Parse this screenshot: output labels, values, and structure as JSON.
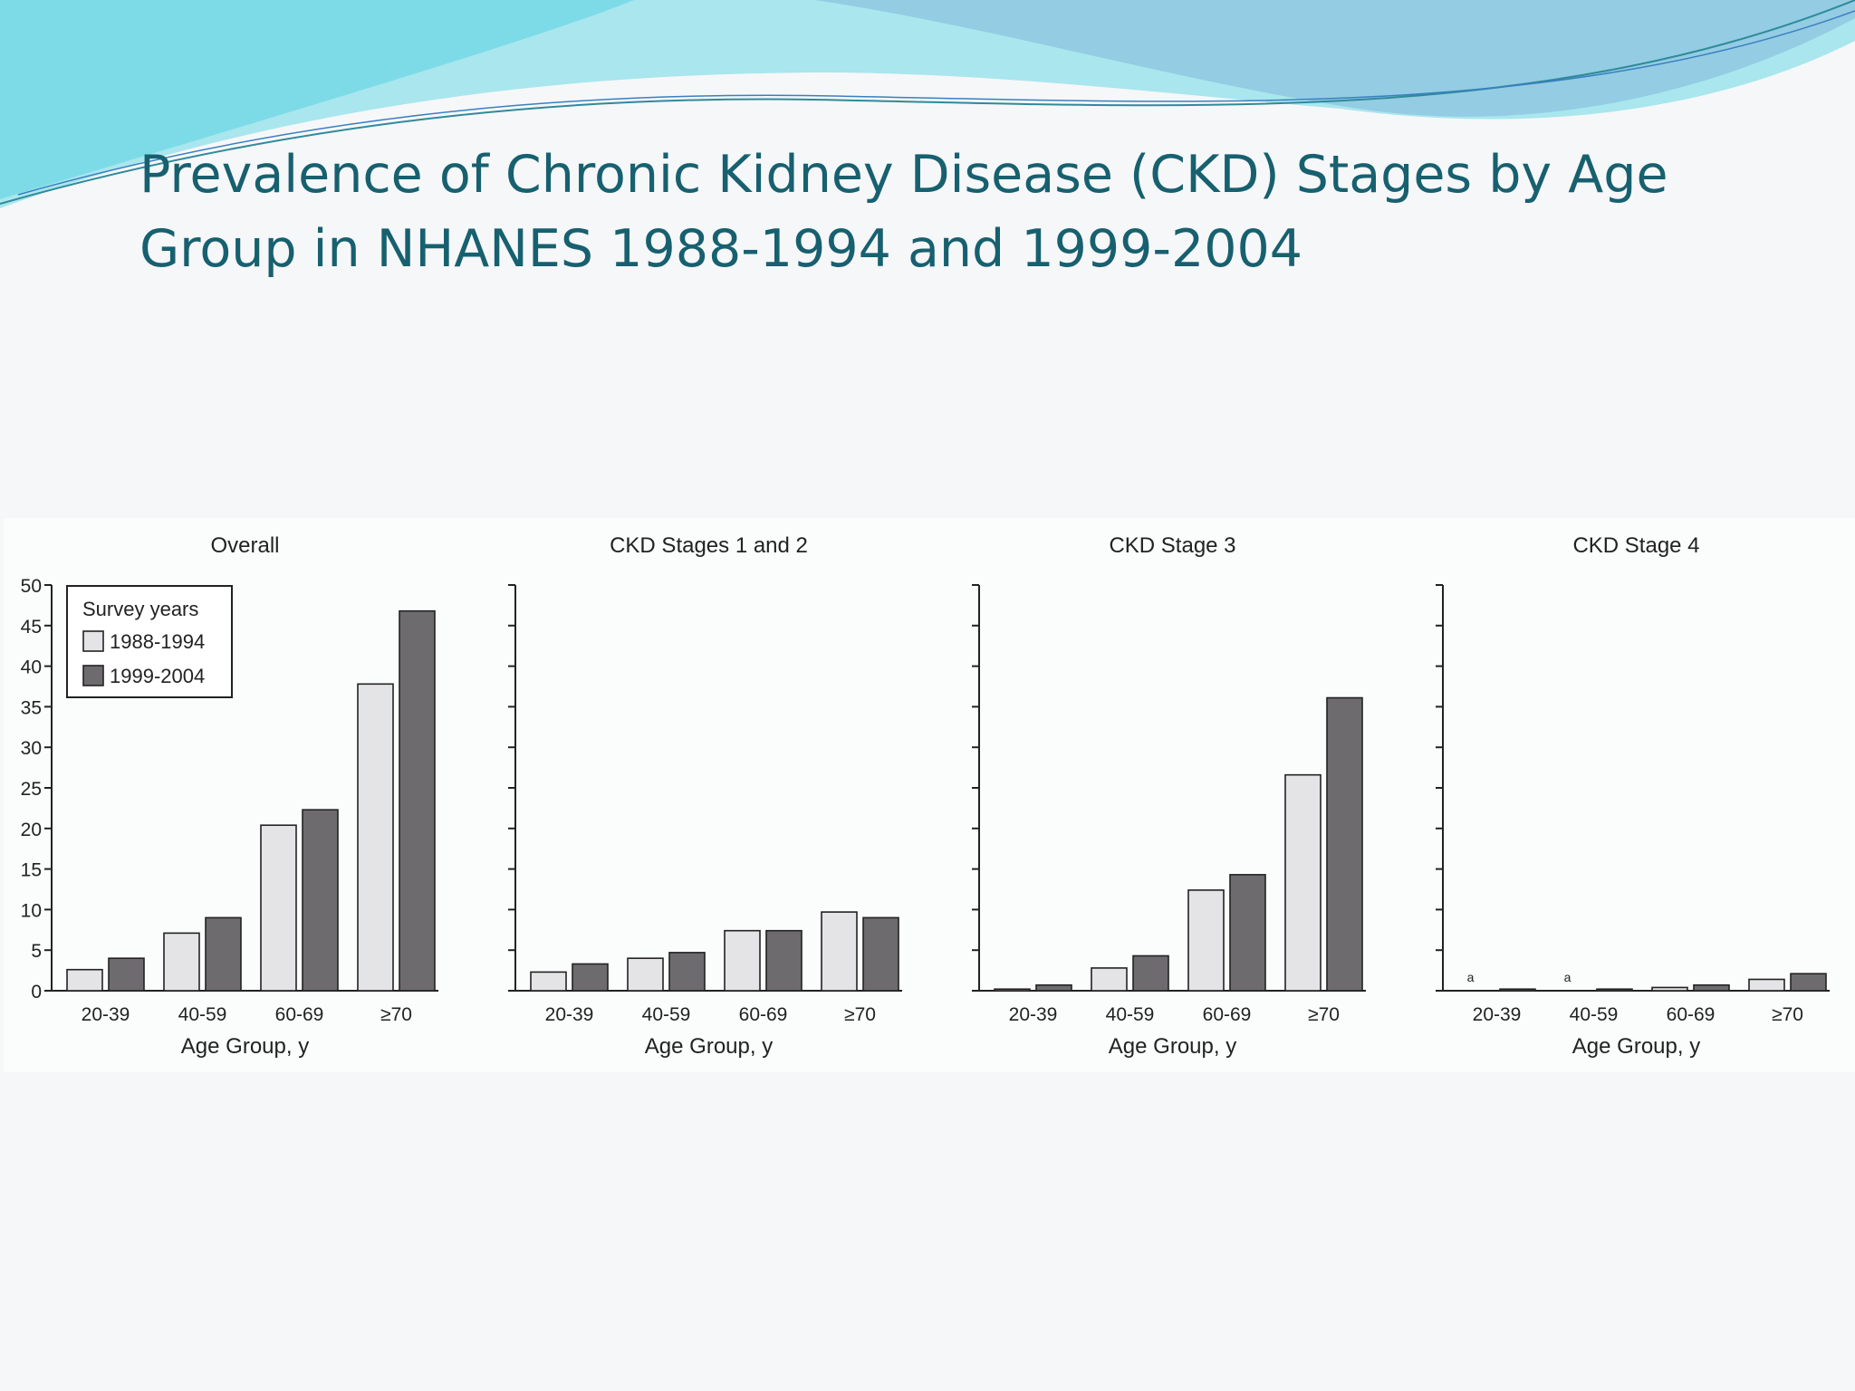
{
  "slide": {
    "title_line1": "Prevalence of Chronic Kidney Disease (CKD) Stages by Age",
    "title_line2": "Group in NHANES 1988-1994 and 1999-2004"
  },
  "colors": {
    "title": "#17606f",
    "series_1988": "#e4e4e7",
    "series_1999": "#6e6b6f",
    "wave_light": "#8fe3ec",
    "wave_blue": "#7fb6d8"
  },
  "legend": {
    "title": "Survey years",
    "items": [
      "1988-1994",
      "1999-2004"
    ]
  },
  "chart_data": [
    {
      "type": "bar",
      "title": "Overall",
      "xlabel": "Age Group, y",
      "categories": [
        "20-39",
        "40-59",
        "60-69",
        "≥70"
      ],
      "series": [
        {
          "name": "1988-1994",
          "values": [
            2.6,
            7.1,
            20.4,
            37.8
          ]
        },
        {
          "name": "1999-2004",
          "values": [
            4.0,
            9.0,
            22.3,
            46.8
          ]
        }
      ],
      "ylim": [
        0,
        50
      ],
      "yticks": [
        "0",
        "5",
        "10",
        "15",
        "20",
        "25",
        "30",
        "35",
        "40",
        "45",
        "50"
      ],
      "legend_position": "top-left"
    },
    {
      "type": "bar",
      "title": "CKD Stages 1 and 2",
      "xlabel": "Age Group, y",
      "categories": [
        "20-39",
        "40-59",
        "60-69",
        "≥70"
      ],
      "series": [
        {
          "name": "1988-1994",
          "values": [
            2.3,
            4.0,
            7.4,
            9.7
          ]
        },
        {
          "name": "1999-2004",
          "values": [
            3.3,
            4.7,
            7.4,
            9.0
          ]
        }
      ],
      "ylim": [
        0,
        50
      ]
    },
    {
      "type": "bar",
      "title": "CKD Stage 3",
      "xlabel": "Age Group, y",
      "categories": [
        "20-39",
        "40-59",
        "60-69",
        "≥70"
      ],
      "series": [
        {
          "name": "1988-1994",
          "values": [
            0.2,
            2.8,
            12.4,
            26.6
          ]
        },
        {
          "name": "1999-2004",
          "values": [
            0.7,
            4.3,
            14.3,
            36.1
          ]
        }
      ],
      "ylim": [
        0,
        50
      ]
    },
    {
      "type": "bar",
      "title": "CKD Stage 4",
      "xlabel": "Age Group, y",
      "categories": [
        "20-39",
        "40-59",
        "60-69",
        "≥70"
      ],
      "series": [
        {
          "name": "1988-1994",
          "values": [
            0,
            0,
            0.4,
            1.4
          ]
        },
        {
          "name": "1999-2004",
          "values": [
            0.2,
            0.2,
            0.7,
            2.1
          ]
        }
      ],
      "ylim": [
        0,
        50
      ],
      "annotations": [
        {
          "category": "20-39",
          "text": "a"
        },
        {
          "category": "40-59",
          "text": "a"
        }
      ]
    }
  ]
}
